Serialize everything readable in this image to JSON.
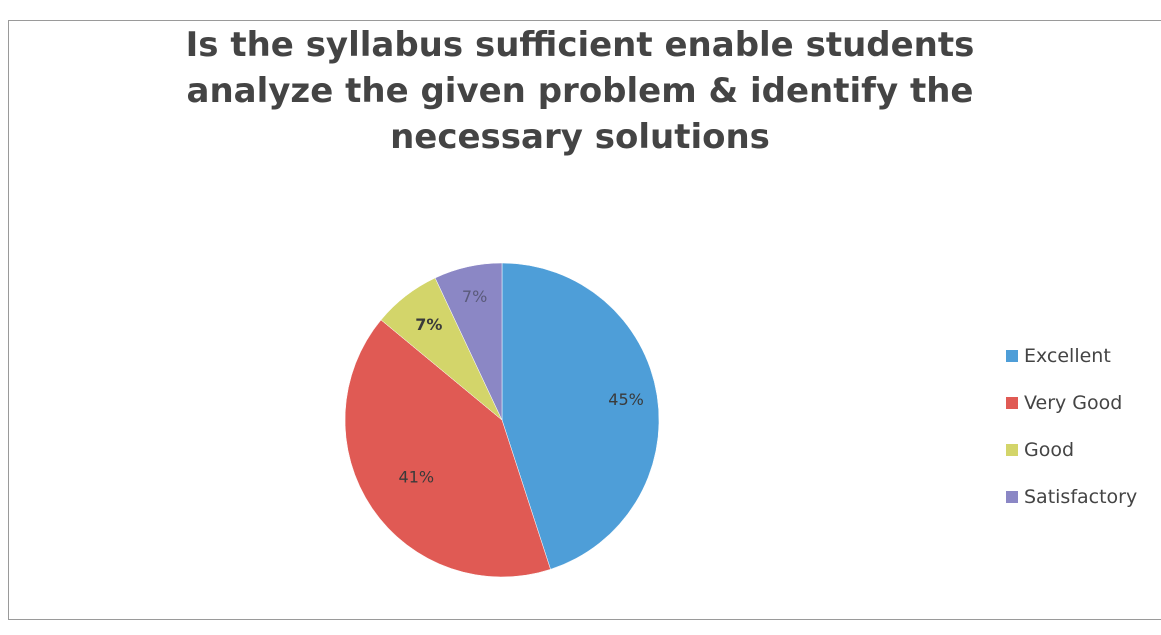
{
  "chart_data": {
    "type": "pie",
    "title": "Is the syllabus sufficient enable students analyze the given problem & identify the necessary solutions",
    "categories": [
      "Excellent",
      "Very Good",
      "Good",
      "Satisfactory"
    ],
    "values": [
      45,
      41,
      7,
      7
    ],
    "data_labels": [
      "45%",
      "41%",
      "7%",
      "7%"
    ],
    "colors": [
      "#4e9ed8",
      "#e05a54",
      "#d3d56a",
      "#8b87c5"
    ],
    "legend_position": "right",
    "start_angle_deg": 0,
    "direction": "clockwise"
  }
}
